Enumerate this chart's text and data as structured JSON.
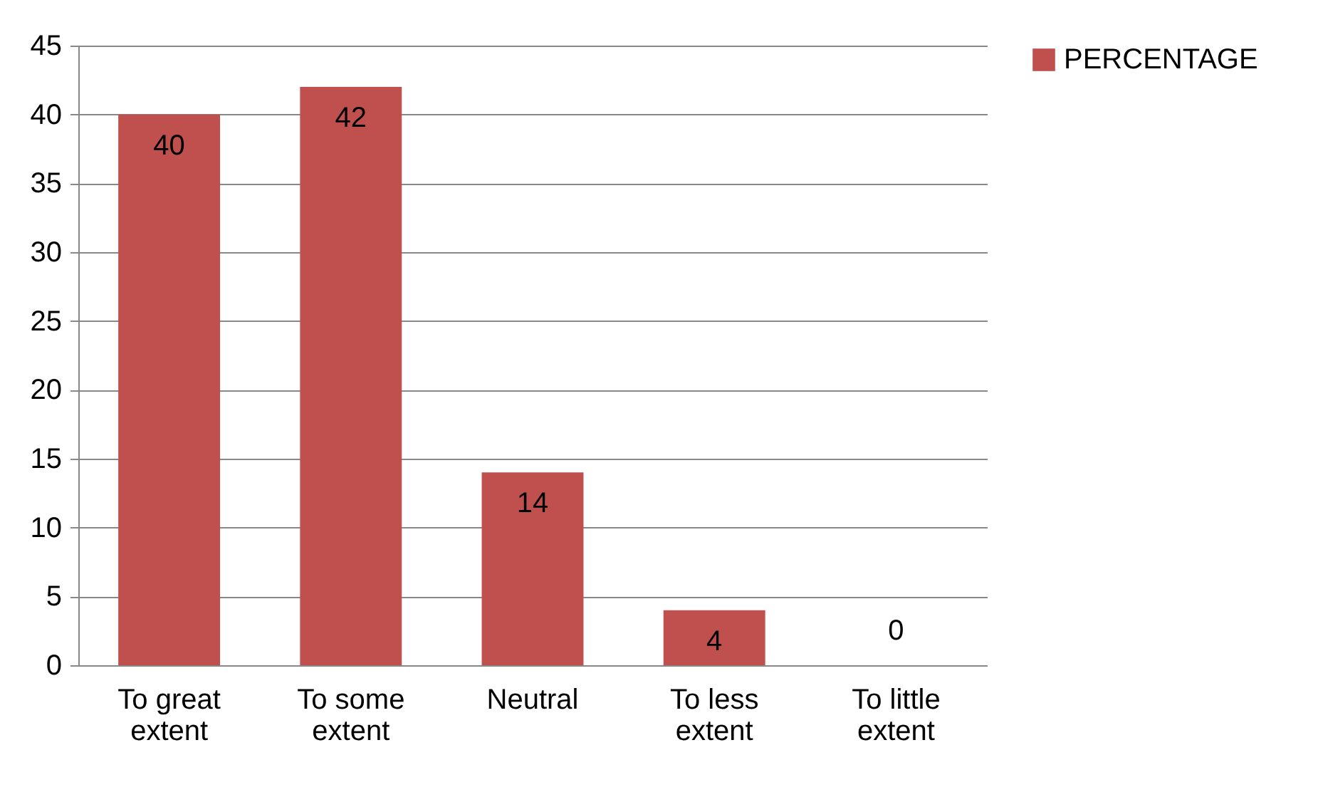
{
  "chart_data": {
    "type": "bar",
    "categories": [
      "To great extent",
      "To some extent",
      "Neutral",
      "To less extent",
      "To little extent"
    ],
    "series": [
      {
        "name": "PERCENTAGE",
        "color": "#c0504d",
        "values": [
          40,
          42,
          14,
          4,
          0
        ]
      }
    ],
    "ylim": [
      0,
      45
    ],
    "yticks": [
      0,
      5,
      10,
      15,
      20,
      25,
      30,
      35,
      40,
      45
    ],
    "grid": "y",
    "legend": "right",
    "data_labels": true
  }
}
